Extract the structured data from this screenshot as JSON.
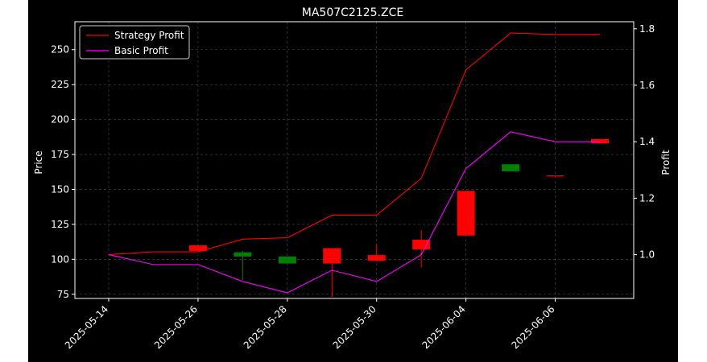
{
  "chart_data": {
    "type": "candlestick+line",
    "title": "MA507C2125.ZCE",
    "xlabel": "",
    "ylabel_left": "Price",
    "ylabel_right": "Profit",
    "ylim_left": [
      72,
      270
    ],
    "ylim_right": [
      0.845,
      1.825
    ],
    "yticks_left": [
      75,
      100,
      125,
      150,
      175,
      200,
      225,
      250
    ],
    "yticks_right": [
      1.0,
      1.2,
      1.4,
      1.6,
      1.8
    ],
    "x_tick_labels": [
      {
        "index": 0,
        "label": "2025-05-14"
      },
      {
        "index": 2,
        "label": "2025-05-26"
      },
      {
        "index": 4,
        "label": "2025-05-28"
      },
      {
        "index": 6,
        "label": "2025-05-30"
      },
      {
        "index": 8,
        "label": "2025-06-04"
      },
      {
        "index": 10,
        "label": "2025-06-06"
      }
    ],
    "grid": true,
    "legend_position": "top-left",
    "candles": [
      {
        "i": 2,
        "open": 106,
        "close": 110,
        "high": 110,
        "low": 106
      },
      {
        "i": 3,
        "open": 105,
        "close": 102,
        "high": 106,
        "low": 85
      },
      {
        "i": 4,
        "open": 102,
        "close": 97,
        "high": 102,
        "low": 97
      },
      {
        "i": 5,
        "open": 97,
        "close": 108,
        "high": 108,
        "low": 73
      },
      {
        "i": 6,
        "open": 99,
        "close": 103,
        "high": 111,
        "low": 99
      },
      {
        "i": 7,
        "open": 107,
        "close": 114,
        "high": 121,
        "low": 94
      },
      {
        "i": 8,
        "open": 117,
        "close": 149,
        "high": 149,
        "low": 117
      },
      {
        "i": 9,
        "open": 168,
        "close": 163,
        "high": 168,
        "low": 163
      },
      {
        "i": 10,
        "open": 160,
        "close": 160,
        "high": 160,
        "low": 160
      },
      {
        "i": 11,
        "open": 183,
        "close": 186,
        "high": 186,
        "low": 183
      }
    ],
    "series": [
      {
        "name": "Strategy Profit",
        "color": "#ff0000",
        "values": [
          1.0,
          1.01,
          1.01,
          1.055,
          1.06,
          1.14,
          1.14,
          1.27,
          1.655,
          1.785,
          1.78,
          1.78
        ]
      },
      {
        "name": "Basic Profit",
        "color": "#ff00ff",
        "values": [
          1.0,
          0.965,
          0.965,
          0.905,
          0.865,
          0.945,
          0.905,
          1.0,
          1.305,
          1.435,
          1.4,
          1.4
        ]
      }
    ],
    "colors": {
      "up": "#ff0000",
      "down": "#008000",
      "grid": "#808080",
      "axis": "#ffffff",
      "background": "#000000"
    }
  }
}
